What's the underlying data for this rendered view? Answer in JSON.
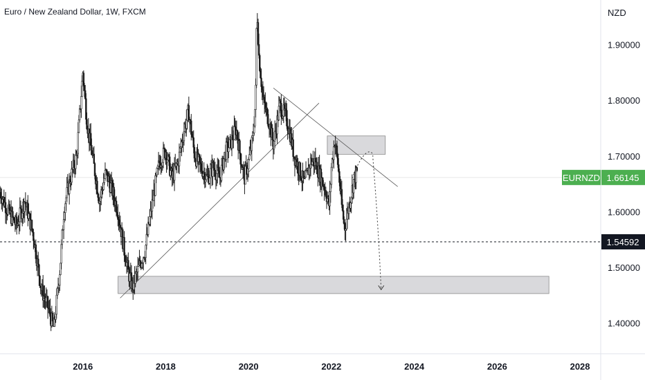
{
  "header": {
    "title": "Euro / New Zealand Dollar, 1W, FXCM",
    "currency": "NZD"
  },
  "colors": {
    "candles": "#1a1a1a",
    "zone_fill": "#d9d9dc",
    "zone_border": "#8a8a8a",
    "symbol_badge": "#4caf50",
    "price_badge": "#131722",
    "grid": "#f0f3fa"
  },
  "chart_data": {
    "type": "candlestick-line",
    "xlim": [
      2014.0,
      2028.5
    ],
    "ylim": [
      1.345,
      1.98
    ],
    "x_ticks": [
      {
        "label": "2016",
        "value": 2016
      },
      {
        "label": "2018",
        "value": 2018
      },
      {
        "label": "2020",
        "value": 2020
      },
      {
        "label": "2022",
        "value": 2022
      },
      {
        "label": "2024",
        "value": 2024
      },
      {
        "label": "2026",
        "value": 2026
      },
      {
        "label": "2028",
        "value": 2028
      }
    ],
    "y_ticks": [
      {
        "label": "1.90000",
        "value": 1.9
      },
      {
        "label": "1.80000",
        "value": 1.8
      },
      {
        "label": "1.70000",
        "value": 1.7
      },
      {
        "label": "1.60000",
        "value": 1.6
      },
      {
        "label": "1.50000",
        "value": 1.5
      },
      {
        "label": "1.40000",
        "value": 1.4
      }
    ],
    "price_path": [
      [
        2014.0,
        1.635
      ],
      [
        2014.2,
        1.6
      ],
      [
        2014.4,
        1.575
      ],
      [
        2014.6,
        1.62
      ],
      [
        2014.8,
        1.56
      ],
      [
        2014.9,
        1.51
      ],
      [
        2015.0,
        1.46
      ],
      [
        2015.15,
        1.43
      ],
      [
        2015.3,
        1.39
      ],
      [
        2015.45,
        1.5
      ],
      [
        2015.55,
        1.61
      ],
      [
        2015.7,
        1.66
      ],
      [
        2015.85,
        1.7
      ],
      [
        2015.95,
        1.8
      ],
      [
        2016.0,
        1.85
      ],
      [
        2016.1,
        1.76
      ],
      [
        2016.25,
        1.69
      ],
      [
        2016.4,
        1.62
      ],
      [
        2016.55,
        1.67
      ],
      [
        2016.7,
        1.64
      ],
      [
        2016.85,
        1.6
      ],
      [
        2017.0,
        1.53
      ],
      [
        2017.1,
        1.49
      ],
      [
        2017.2,
        1.465
      ],
      [
        2017.35,
        1.5
      ],
      [
        2017.5,
        1.53
      ],
      [
        2017.6,
        1.58
      ],
      [
        2017.75,
        1.65
      ],
      [
        2017.85,
        1.69
      ],
      [
        2018.0,
        1.71
      ],
      [
        2018.15,
        1.66
      ],
      [
        2018.3,
        1.69
      ],
      [
        2018.45,
        1.75
      ],
      [
        2018.55,
        1.78
      ],
      [
        2018.7,
        1.7
      ],
      [
        2018.85,
        1.68
      ],
      [
        2019.0,
        1.66
      ],
      [
        2019.15,
        1.68
      ],
      [
        2019.3,
        1.66
      ],
      [
        2019.45,
        1.71
      ],
      [
        2019.55,
        1.72
      ],
      [
        2019.7,
        1.75
      ],
      [
        2019.8,
        1.7
      ],
      [
        2019.9,
        1.66
      ],
      [
        2020.0,
        1.69
      ],
      [
        2020.1,
        1.73
      ],
      [
        2020.17,
        1.8
      ],
      [
        2020.2,
        1.97
      ],
      [
        2020.25,
        1.88
      ],
      [
        2020.35,
        1.8
      ],
      [
        2020.5,
        1.76
      ],
      [
        2020.6,
        1.72
      ],
      [
        2020.75,
        1.79
      ],
      [
        2020.9,
        1.77
      ],
      [
        2021.0,
        1.74
      ],
      [
        2021.1,
        1.7
      ],
      [
        2021.2,
        1.68
      ],
      [
        2021.35,
        1.65
      ],
      [
        2021.5,
        1.69
      ],
      [
        2021.6,
        1.69
      ],
      [
        2021.7,
        1.67
      ],
      [
        2021.85,
        1.64
      ],
      [
        2021.95,
        1.61
      ],
      [
        2022.0,
        1.68
      ],
      [
        2022.08,
        1.73
      ],
      [
        2022.15,
        1.69
      ],
      [
        2022.25,
        1.61
      ],
      [
        2022.32,
        1.57
      ],
      [
        2022.42,
        1.61
      ],
      [
        2022.55,
        1.66
      ],
      [
        2022.62,
        1.67
      ]
    ],
    "annotations": {
      "support_zone": {
        "x_start": 2016.85,
        "x_end": 2027.25,
        "y_low": 1.453,
        "y_high": 1.484
      },
      "resistance_zone": {
        "x_start": 2021.9,
        "x_end": 2023.3,
        "y_low": 1.703,
        "y_high": 1.736
      },
      "trendline_up": {
        "start": [
          2016.9,
          1.445
        ],
        "end": [
          2021.7,
          1.795
        ]
      },
      "trendline_down": {
        "start": [
          2020.6,
          1.822
        ],
        "end": [
          2023.6,
          1.645
        ]
      },
      "projection_path": [
        [
          2022.5,
          1.66
        ],
        [
          2022.8,
          1.72
        ],
        [
          2023.0,
          1.7
        ],
        [
          2023.1,
          1.62
        ],
        [
          2023.2,
          1.46
        ]
      ],
      "dashed_level": 1.54592
    },
    "labels": {
      "symbol": "EURNZD",
      "last_price": "1.66145",
      "last_price_value": 1.66145,
      "dashed_level_label": "1.54592",
      "dashed_level_value": 1.54592
    }
  }
}
